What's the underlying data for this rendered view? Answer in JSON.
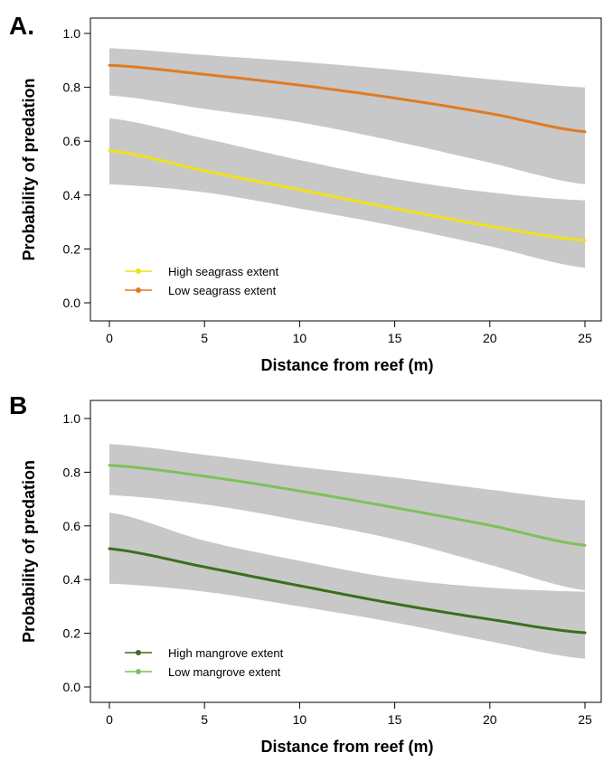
{
  "chart_data": [
    {
      "type": "line",
      "panel_label": "A.",
      "xlabel": "Distance from reef (m)",
      "ylabel": "Probability of predation",
      "xlim": [
        0,
        25
      ],
      "ylim": [
        0,
        1
      ],
      "x_ticks": [
        0,
        5,
        10,
        15,
        20,
        25
      ],
      "y_ticks": [
        "0.0",
        "0.2",
        "0.4",
        "0.6",
        "0.8",
        "1.0"
      ],
      "legend_position": "bottom-left",
      "ribbon_color": "#c8c8c8",
      "grid": false,
      "x": [
        0,
        5,
        10,
        15,
        20,
        25
      ],
      "series": [
        {
          "name": "High seagrass extent",
          "color": "#f2e01c",
          "values": [
            0.565,
            0.49,
            0.42,
            0.35,
            0.285,
            0.232
          ],
          "lower": [
            0.44,
            0.41,
            0.35,
            0.285,
            0.21,
            0.13
          ],
          "upper": [
            0.685,
            0.61,
            0.53,
            0.46,
            0.41,
            0.38
          ]
        },
        {
          "name": "Low seagrass extent",
          "color": "#e07b22",
          "values": [
            0.882,
            0.848,
            0.808,
            0.76,
            0.703,
            0.635
          ],
          "lower": [
            0.77,
            0.72,
            0.67,
            0.6,
            0.52,
            0.44
          ],
          "upper": [
            0.945,
            0.92,
            0.895,
            0.865,
            0.83,
            0.8
          ]
        }
      ]
    },
    {
      "type": "line",
      "panel_label": "B",
      "xlabel": "Distance from reef (m)",
      "ylabel": "Probability of predation",
      "xlim": [
        0,
        25
      ],
      "ylim": [
        0,
        1
      ],
      "x_ticks": [
        0,
        5,
        10,
        15,
        20,
        25
      ],
      "y_ticks": [
        "0.0",
        "0.2",
        "0.4",
        "0.6",
        "0.8",
        "1.0"
      ],
      "legend_position": "bottom-left",
      "ribbon_color": "#c8c8c8",
      "grid": false,
      "x": [
        0,
        5,
        10,
        15,
        20,
        25
      ],
      "series": [
        {
          "name": "High mangrove extent",
          "color": "#3b6e1e",
          "values": [
            0.515,
            0.447,
            0.377,
            0.31,
            0.252,
            0.202
          ],
          "lower": [
            0.385,
            0.355,
            0.3,
            0.24,
            0.17,
            0.105
          ],
          "upper": [
            0.65,
            0.545,
            0.47,
            0.405,
            0.37,
            0.355
          ]
        },
        {
          "name": "Low mangrove extent",
          "color": "#7cc25a",
          "values": [
            0.826,
            0.785,
            0.73,
            0.668,
            0.602,
            0.528
          ],
          "lower": [
            0.715,
            0.68,
            0.62,
            0.55,
            0.455,
            0.36
          ],
          "upper": [
            0.905,
            0.865,
            0.82,
            0.78,
            0.735,
            0.695
          ]
        }
      ]
    }
  ]
}
